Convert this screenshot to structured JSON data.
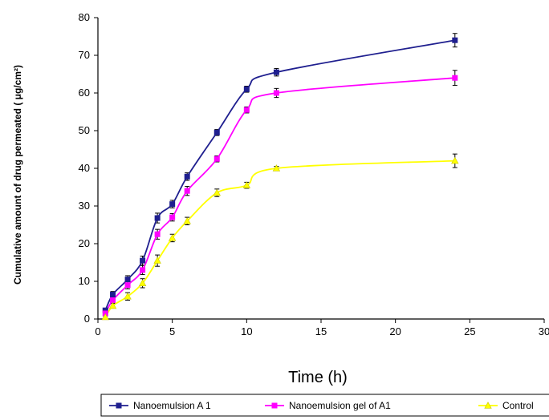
{
  "chart_data": {
    "type": "line",
    "title": "",
    "xlabel": "Time (h)",
    "ylabel": "Cumulative amount of drug  permeated ( μg/cm²)",
    "xlim": [
      0,
      30
    ],
    "ylim": [
      0,
      80
    ],
    "x_ticks": [
      "0",
      "5",
      "10",
      "15",
      "20",
      "25",
      "30"
    ],
    "y_ticks": [
      "0",
      "10",
      "20",
      "30",
      "40",
      "50",
      "60",
      "70",
      "80"
    ],
    "grid": false,
    "legend_position": "bottom",
    "x": [
      0.5,
      1,
      2,
      3,
      4,
      5,
      6,
      8,
      10,
      12,
      24
    ],
    "series": [
      {
        "name": "Nanoemulsion A 1",
        "color": "#1f1f8f",
        "marker": "square",
        "values": [
          2.3,
          6.5,
          10.5,
          15.5,
          26.8,
          30.5,
          37.8,
          49.5,
          61.0,
          65.5,
          74.0
        ],
        "errors": [
          0.5,
          0.8,
          1.0,
          1.2,
          1.3,
          1.0,
          1.0,
          0.8,
          0.8,
          1.0,
          1.8
        ]
      },
      {
        "name": "Nanoemulsion gel of A1",
        "color": "#ff00ff",
        "marker": "square",
        "values": [
          1.5,
          5.0,
          9.0,
          13.0,
          22.5,
          27.0,
          34.0,
          42.5,
          55.5,
          60.0,
          64.0
        ],
        "errors": [
          0.5,
          0.8,
          1.0,
          1.2,
          1.3,
          1.0,
          1.2,
          0.8,
          0.8,
          1.2,
          2.0
        ]
      },
      {
        "name": "Control",
        "color": "#ffff00",
        "marker": "triangle",
        "values": [
          0.5,
          3.5,
          6.0,
          9.5,
          15.5,
          21.5,
          26.0,
          33.5,
          35.5,
          40.0,
          42.0
        ],
        "errors": [
          0.3,
          0.6,
          1.0,
          1.2,
          1.5,
          1.0,
          1.0,
          1.0,
          0.8,
          0.5,
          1.8
        ]
      }
    ]
  }
}
